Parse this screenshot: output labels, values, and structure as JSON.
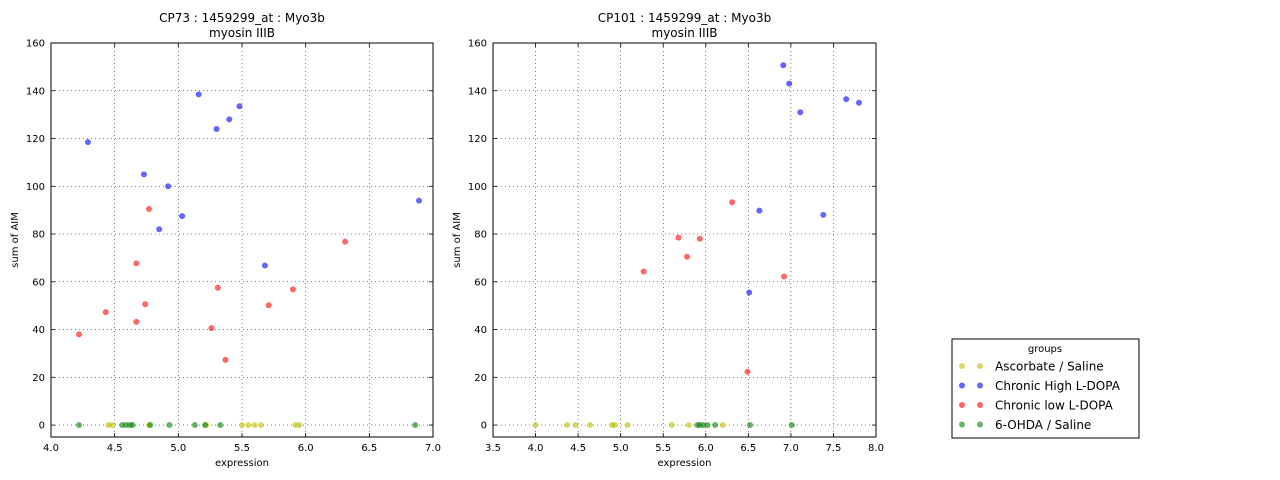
{
  "chart_data": [
    {
      "type": "scatter",
      "title": "CP73 : 1459299_at : Myo3b",
      "subtitle": "myosin IIIB",
      "xlabel": "expression",
      "ylabel": "sum of AIM",
      "xlim": [
        4.0,
        7.0
      ],
      "ylim": [
        -5,
        160
      ],
      "xticks": [
        "4.0",
        "4.5",
        "5.0",
        "5.5",
        "6.0",
        "6.5",
        "7.0"
      ],
      "yticks": [
        "0",
        "20",
        "40",
        "60",
        "80",
        "100",
        "120",
        "140",
        "160"
      ],
      "grid": true,
      "series": [
        {
          "name": "Ascorbate / Saline",
          "color": "#bfbf00",
          "points": [
            [
              4.45,
              0
            ],
            [
              4.48,
              0
            ],
            [
              4.77,
              0
            ],
            [
              5.22,
              0
            ],
            [
              5.5,
              0
            ],
            [
              5.55,
              0
            ],
            [
              5.6,
              0
            ],
            [
              5.65,
              0
            ],
            [
              5.92,
              0
            ],
            [
              5.95,
              0
            ]
          ]
        },
        {
          "name": "Chronic High L-DOPA",
          "color": "#0000ff",
          "points": [
            [
              4.29,
              118.5
            ],
            [
              4.73,
              105
            ],
            [
              4.85,
              82
            ],
            [
              4.92,
              100
            ],
            [
              5.03,
              87.5
            ],
            [
              5.16,
              138.5
            ],
            [
              5.3,
              124
            ],
            [
              5.4,
              128
            ],
            [
              5.48,
              133.5
            ],
            [
              5.68,
              66.8
            ],
            [
              6.89,
              94
            ]
          ]
        },
        {
          "name": "Chronic low L-DOPA",
          "color": "#ff0000",
          "points": [
            [
              4.22,
              38
            ],
            [
              4.43,
              47.3
            ],
            [
              4.67,
              67.7
            ],
            [
              4.67,
              43.2
            ],
            [
              4.74,
              50.6
            ],
            [
              4.77,
              90.5
            ],
            [
              5.26,
              40.6
            ],
            [
              5.31,
              57.5
            ],
            [
              5.37,
              27.3
            ],
            [
              5.71,
              50.2
            ],
            [
              5.9,
              56.8
            ],
            [
              6.31,
              76.8
            ]
          ]
        },
        {
          "name": "6-OHDA / Saline",
          "color": "#008000",
          "points": [
            [
              4.22,
              0
            ],
            [
              4.56,
              0
            ],
            [
              4.59,
              0
            ],
            [
              4.62,
              0
            ],
            [
              4.64,
              0
            ],
            [
              4.78,
              0
            ],
            [
              4.93,
              0
            ],
            [
              5.13,
              0
            ],
            [
              5.21,
              0
            ],
            [
              5.33,
              0
            ],
            [
              6.86,
              0
            ]
          ]
        }
      ]
    },
    {
      "type": "scatter",
      "title": "CP101 : 1459299_at : Myo3b",
      "subtitle": "myosin IIIB",
      "xlabel": "expression",
      "ylabel": "sum of AIM",
      "xlim": [
        3.5,
        8.0
      ],
      "ylim": [
        -5,
        160
      ],
      "xticks": [
        "3.5",
        "4.0",
        "4.5",
        "5.0",
        "5.5",
        "6.0",
        "6.5",
        "7.0",
        "7.5",
        "8.0"
      ],
      "yticks": [
        "0",
        "20",
        "40",
        "60",
        "80",
        "100",
        "120",
        "140",
        "160"
      ],
      "grid": true,
      "series": [
        {
          "name": "Ascorbate / Saline",
          "color": "#bfbf00",
          "points": [
            [
              4.0,
              0
            ],
            [
              4.37,
              0
            ],
            [
              4.47,
              0
            ],
            [
              4.64,
              0
            ],
            [
              4.9,
              0
            ],
            [
              4.93,
              0
            ],
            [
              5.08,
              0
            ],
            [
              5.6,
              0
            ],
            [
              5.8,
              0
            ],
            [
              6.2,
              0
            ]
          ]
        },
        {
          "name": "Chronic High L-DOPA",
          "color": "#0000ff",
          "points": [
            [
              6.51,
              55.5
            ],
            [
              6.63,
              89.8
            ],
            [
              6.91,
              150.7
            ],
            [
              6.98,
              143
            ],
            [
              7.11,
              131
            ],
            [
              7.38,
              88
            ],
            [
              7.65,
              136.5
            ],
            [
              7.8,
              135
            ]
          ]
        },
        {
          "name": "Chronic low L-DOPA",
          "color": "#ff0000",
          "points": [
            [
              5.27,
              64.3
            ],
            [
              5.68,
              78.5
            ],
            [
              5.78,
              70.5
            ],
            [
              5.93,
              78
            ],
            [
              6.31,
              93.3
            ],
            [
              6.49,
              22.3
            ],
            [
              6.92,
              62.2
            ]
          ]
        },
        {
          "name": "6-OHDA / Saline",
          "color": "#008000",
          "points": [
            [
              5.9,
              0
            ],
            [
              5.93,
              0
            ],
            [
              5.97,
              0
            ],
            [
              6.02,
              0
            ],
            [
              6.11,
              0
            ],
            [
              6.52,
              0
            ],
            [
              7.01,
              0
            ]
          ]
        }
      ]
    }
  ],
  "legend": {
    "title": "groups",
    "placement": "bottom-right",
    "items": [
      {
        "label": "Ascorbate / Saline",
        "color": "#bfbf00"
      },
      {
        "label": "Chronic High L-DOPA",
        "color": "#0000ff"
      },
      {
        "label": "Chronic low L-DOPA",
        "color": "#ff0000"
      },
      {
        "label": "6-OHDA / Saline",
        "color": "#008000"
      }
    ]
  }
}
